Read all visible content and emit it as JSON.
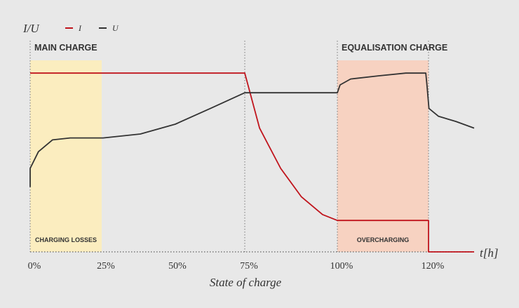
{
  "chart_data": {
    "type": "line",
    "ylabel": "I/U",
    "xlabel": "State of charge",
    "x_end_label": "t[h]",
    "legend": "top-left",
    "xlim": [
      0,
      130
    ],
    "ylim": [
      0,
      100
    ],
    "xticks": [
      {
        "value": 0,
        "label": "0%"
      },
      {
        "value": 25,
        "label": "25%"
      },
      {
        "value": 50,
        "label": "50%"
      },
      {
        "value": 75,
        "label": "75%"
      },
      {
        "value": 100,
        "label": "100%"
      },
      {
        "value": 120,
        "label": "120%"
      }
    ],
    "vlines": [
      0,
      75,
      100,
      120
    ],
    "regions": [
      {
        "label": "MAIN CHARGE",
        "sublabel": "CHARGING LOSSES",
        "from": 0,
        "to": 25,
        "color": "#fbedbf"
      },
      {
        "label": "EQUALISATION CHARGE",
        "sublabel": "OVERCHARGING",
        "from": 100,
        "to": 120,
        "color": "#f7d2c1"
      }
    ],
    "series": [
      {
        "name": "I",
        "color": "#c0141c",
        "x": [
          0,
          75,
          79,
          84.7,
          90.3,
          96,
          100,
          120,
          120,
          130
        ],
        "values": [
          91,
          91,
          63,
          42.5,
          28,
          19,
          16,
          16,
          0,
          0
        ]
      },
      {
        "name": "U",
        "color": "#333333",
        "x": [
          0,
          0,
          2.9,
          7.8,
          14,
          25.5,
          38.5,
          50.7,
          63,
          75,
          100,
          100.6,
          102.9,
          109,
          115,
          119.4,
          119.7,
          120.1,
          122.2,
          126,
          130
        ],
        "values": [
          33,
          42.5,
          51,
          57,
          58,
          58,
          60,
          65,
          73,
          81,
          81,
          85,
          88,
          89.6,
          91,
          91,
          84,
          73,
          69,
          66.4,
          63
        ]
      }
    ]
  }
}
